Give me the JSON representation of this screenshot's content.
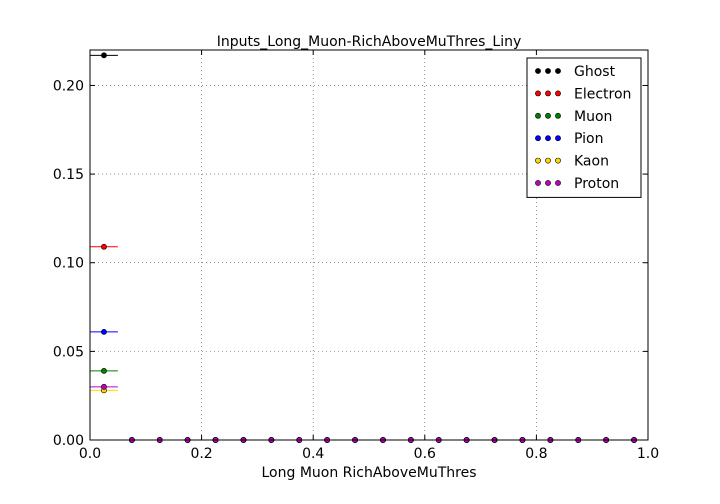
{
  "chart_data": {
    "type": "scatter",
    "title": "Inputs_Long_Muon-RichAboveMuThres_Liny",
    "xlabel": "Long Muon RichAboveMuThres",
    "ylabel": "",
    "xlim": [
      0.0,
      1.0
    ],
    "ylim": [
      0.0,
      0.22
    ],
    "x_ticks": [
      "0.0",
      "0.2",
      "0.4",
      "0.6",
      "0.8",
      "1.0"
    ],
    "y_ticks": [
      "0.00",
      "0.05",
      "0.10",
      "0.15",
      "0.20"
    ],
    "grid": true,
    "legend_position": "top-right",
    "bin_width": 0.05,
    "x": [
      0.025,
      0.075,
      0.125,
      0.175,
      0.225,
      0.275,
      0.325,
      0.375,
      0.425,
      0.475,
      0.525,
      0.575,
      0.625,
      0.675,
      0.725,
      0.775,
      0.825,
      0.875,
      0.925,
      0.975
    ],
    "series": [
      {
        "name": "Ghost",
        "color": "#000000",
        "values": [
          0.217,
          0,
          0,
          0,
          0,
          0,
          0,
          0,
          0,
          0,
          0,
          0,
          0,
          0,
          0,
          0,
          0,
          0,
          0,
          0
        ]
      },
      {
        "name": "Electron",
        "color": "#ff0000",
        "values": [
          0.109,
          0,
          0,
          0,
          0,
          0,
          0,
          0,
          0,
          0,
          0,
          0,
          0,
          0,
          0,
          0,
          0,
          0,
          0,
          0
        ]
      },
      {
        "name": "Muon",
        "color": "#008000",
        "values": [
          0.039,
          0,
          0,
          0,
          0,
          0,
          0,
          0,
          0,
          0,
          0,
          0,
          0,
          0,
          0,
          0,
          0,
          0,
          0,
          0
        ]
      },
      {
        "name": "Pion",
        "color": "#0000ff",
        "values": [
          0.061,
          0,
          0,
          0,
          0,
          0,
          0,
          0,
          0,
          0,
          0,
          0,
          0,
          0,
          0,
          0,
          0,
          0,
          0,
          0
        ]
      },
      {
        "name": "Kaon",
        "color": "#ffd700",
        "values": [
          0.028,
          0,
          0,
          0,
          0,
          0,
          0,
          0,
          0,
          0,
          0,
          0,
          0,
          0,
          0,
          0,
          0,
          0,
          0,
          0
        ]
      },
      {
        "name": "Proton",
        "color": "#bf00bf",
        "values": [
          0.03,
          0,
          0,
          0,
          0,
          0,
          0,
          0,
          0,
          0,
          0,
          0,
          0,
          0,
          0,
          0,
          0,
          0,
          0,
          0
        ]
      }
    ]
  }
}
